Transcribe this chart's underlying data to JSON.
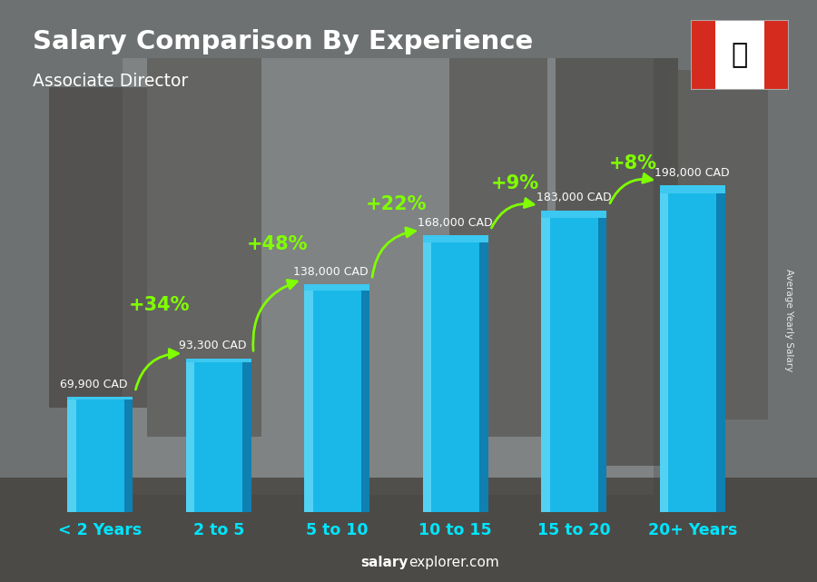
{
  "title": "Salary Comparison By Experience",
  "subtitle": "Associate Director",
  "categories": [
    "< 2 Years",
    "2 to 5",
    "5 to 10",
    "10 to 15",
    "15 to 20",
    "20+ Years"
  ],
  "values": [
    69900,
    93300,
    138000,
    168000,
    183000,
    198000
  ],
  "labels": [
    "69,900 CAD",
    "93,300 CAD",
    "138,000 CAD",
    "168,000 CAD",
    "183,000 CAD",
    "198,000 CAD"
  ],
  "pct_changes": [
    null,
    "+34%",
    "+48%",
    "+22%",
    "+9%",
    "+8%"
  ],
  "bar_color_main": "#1ab8e8",
  "bar_color_light": "#5dd6f5",
  "bar_color_dark": "#0d7aab",
  "bar_color_face": "#3cc8f0",
  "bg_color": "#6b7b8a",
  "title_color": "#ffffff",
  "subtitle_color": "#ffffff",
  "pct_color": "#7fff00",
  "arrow_color": "#7fff00",
  "xlabel_color": "#00e5ff",
  "ylabel_text": "Average Yearly Salary",
  "footer_salary": "salary",
  "footer_rest": "explorer.com",
  "ylim_max": 240000,
  "bar_width": 0.55
}
